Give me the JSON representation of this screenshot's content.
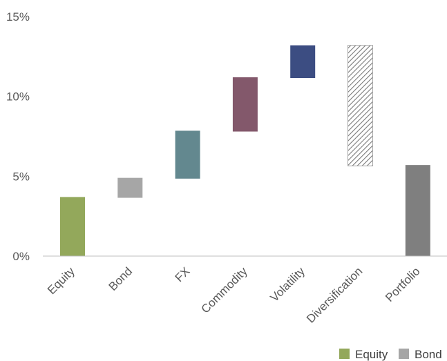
{
  "chart_data": {
    "type": "bar",
    "subtype": "waterfall",
    "title": "",
    "xlabel": "",
    "ylabel": "",
    "categories": [
      "Equity",
      "Bond",
      "FX",
      "Commodity",
      "Volatility",
      "Diversification",
      "Portfolio"
    ],
    "bars": [
      {
        "category": "Equity",
        "start": 0,
        "end": 3.7,
        "color": "#93a85b",
        "pattern": "solid"
      },
      {
        "category": "Bond",
        "start": 3.65,
        "end": 4.9,
        "color": "#a6a6a6",
        "pattern": "solid"
      },
      {
        "category": "FX",
        "start": 4.85,
        "end": 7.85,
        "color": "#63888f",
        "pattern": "solid"
      },
      {
        "category": "Commodity",
        "start": 7.8,
        "end": 11.2,
        "color": "#83586b",
        "pattern": "solid"
      },
      {
        "category": "Volatility",
        "start": 11.15,
        "end": 13.2,
        "color": "#3c4d82",
        "pattern": "solid"
      },
      {
        "category": "Diversification",
        "start": 5.65,
        "end": 13.2,
        "color": "#777777",
        "pattern": "hatched"
      },
      {
        "category": "Portfolio",
        "start": 0,
        "end": 5.7,
        "color": "#7f7f7f",
        "pattern": "solid"
      }
    ],
    "yticks": [
      0,
      5,
      10,
      15
    ],
    "ytick_labels": [
      "0%",
      "5%",
      "10%",
      "15%"
    ],
    "ylim": [
      0,
      15
    ],
    "grid": false,
    "legend": {
      "placement": "bottom-right",
      "entries": [
        {
          "name": "Equity",
          "color": "#93a85b"
        },
        {
          "name": "Bond",
          "color": "#a6a6a6"
        }
      ]
    }
  }
}
